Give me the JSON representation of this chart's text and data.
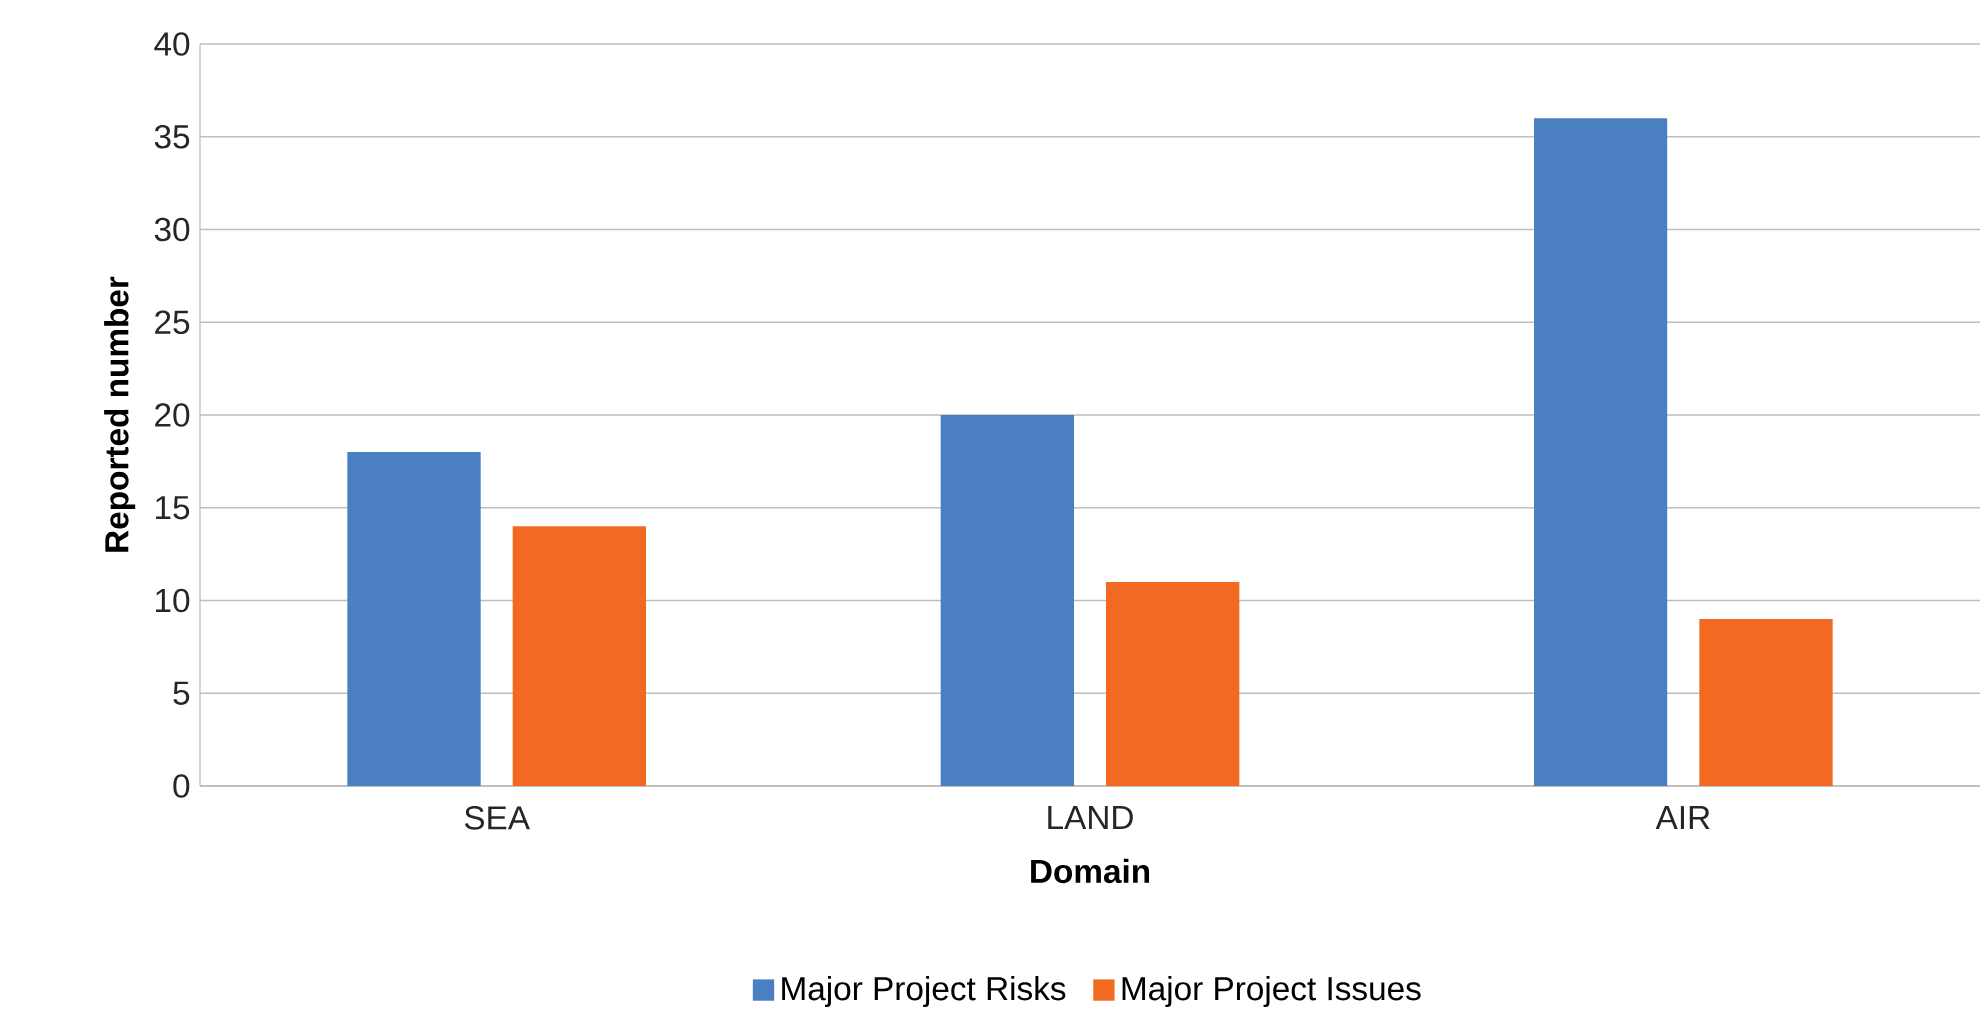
{
  "chart_data": {
    "type": "bar",
    "xlabel": "Domain",
    "ylabel": "Reported number",
    "categories": [
      "SEA",
      "LAND",
      "AIR"
    ],
    "series": [
      {
        "name": "Major Project Risks",
        "color": "#4a7fc1",
        "values": [
          18,
          20,
          36
        ]
      },
      {
        "name": "Major Project Issues",
        "color": "#f26a22",
        "values": [
          14,
          11,
          9
        ]
      }
    ],
    "ylim": [
      0,
      40
    ],
    "yticks": [
      0,
      5,
      10,
      15,
      20,
      25,
      30,
      35,
      40
    ],
    "grid": "y",
    "legend": "bottom"
  }
}
